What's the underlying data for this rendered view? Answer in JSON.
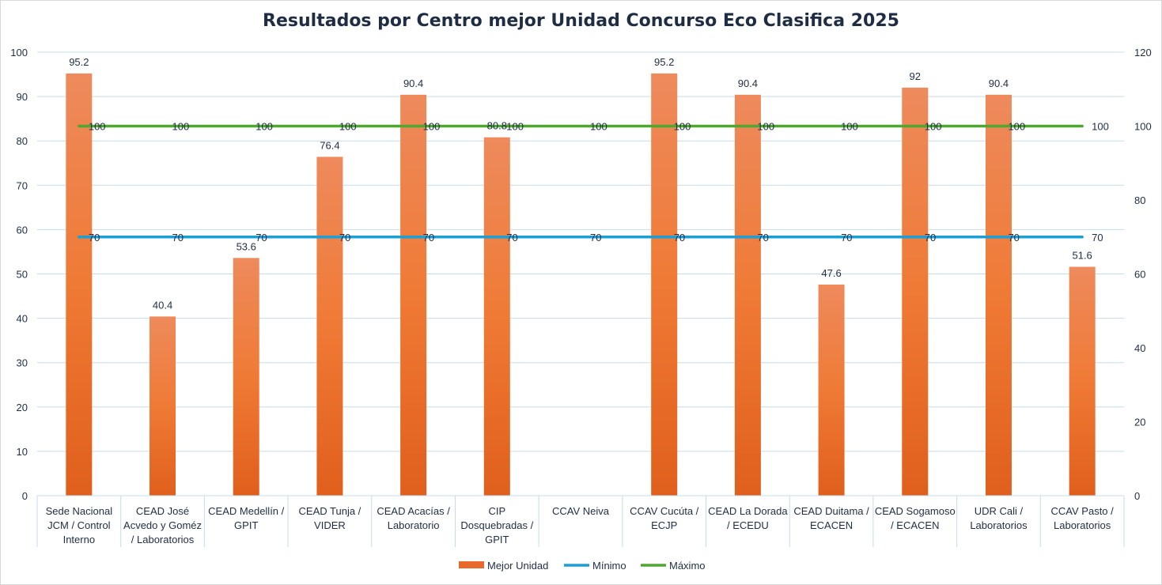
{
  "chart_data": {
    "type": "bar",
    "title": "Resultados por Centro mejor Unidad Concurso Eco Clasifica 2025",
    "categories": [
      [
        "Sede Nacional",
        "JCM / Control",
        "Interno"
      ],
      [
        "CEAD José",
        "Acvedo y Goméz",
        "/ Laboratorios"
      ],
      [
        "CEAD Medellín /",
        "GPIT"
      ],
      [
        "CEAD Tunja /",
        "VIDER"
      ],
      [
        "CEAD Acacías /",
        "Laboratorio"
      ],
      [
        "CIP",
        "Dosquebradas /",
        "GPIT"
      ],
      [
        "CCAV Neiva"
      ],
      [
        "CCAV Cucúta /",
        "ECJP"
      ],
      [
        "CEAD La Dorada",
        "/ ECEDU"
      ],
      [
        "CEAD Duitama /",
        "ECACEN"
      ],
      [
        "CEAD Sogamoso",
        "/ ECACEN"
      ],
      [
        "UDR Cali /",
        "Laboratorios"
      ],
      [
        "CCAV Pasto /",
        "Laboratorios"
      ]
    ],
    "series": [
      {
        "name": "Mejor Unidad",
        "kind": "bar",
        "axis": "left",
        "values": [
          95.2,
          40.4,
          53.6,
          76.4,
          90.4,
          80.8,
          null,
          95.2,
          90.4,
          47.6,
          92,
          90.4,
          51.6
        ],
        "labels": [
          "95.2",
          "40.4",
          "53.6",
          "76.4",
          "90.4",
          "80.8",
          "",
          "95.2",
          "90.4",
          "47.6",
          "92",
          "90.4",
          "51.6"
        ],
        "color": "#e8692b"
      },
      {
        "name": "Mínimo",
        "kind": "line",
        "axis": "right",
        "values": [
          70,
          70,
          70,
          70,
          70,
          70,
          70,
          70,
          70,
          70,
          70,
          70,
          70
        ],
        "labels": [
          "70",
          "70",
          "70",
          "70",
          "70",
          "70",
          "70",
          "70",
          "70",
          "70",
          "70",
          "70",
          "70"
        ],
        "color": "#1a9fd6"
      },
      {
        "name": "Máximo",
        "kind": "line",
        "axis": "right",
        "values": [
          100,
          100,
          100,
          100,
          100,
          100,
          100,
          100,
          100,
          100,
          100,
          100,
          100
        ],
        "labels": [
          "100",
          "100",
          "100",
          "100",
          "100",
          "100",
          "100",
          "100",
          "100",
          "100",
          "100",
          "100",
          "100"
        ],
        "color": "#4ea72e"
      }
    ],
    "y_left": {
      "min": 0,
      "max": 100,
      "step": 10,
      "ticks": [
        "0",
        "10",
        "20",
        "30",
        "40",
        "50",
        "60",
        "70",
        "80",
        "90",
        "100"
      ]
    },
    "y_right": {
      "min": 0,
      "max": 120,
      "step": 20,
      "ticks": [
        "0",
        "20",
        "40",
        "60",
        "80",
        "100",
        "120"
      ]
    },
    "grid": true,
    "legend_position": "bottom-center",
    "text_color": "#1f2d44",
    "grid_color": "#c5dbe8"
  }
}
